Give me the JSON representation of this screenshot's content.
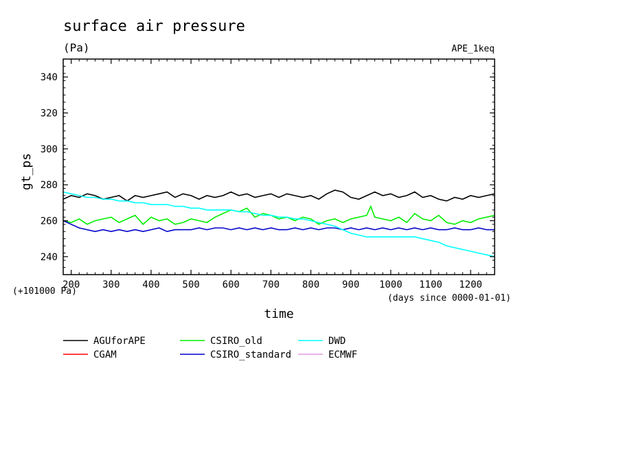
{
  "chart_data": {
    "type": "line",
    "title": "surface air pressure",
    "units": "(Pa)",
    "experiment": "APE_1keq",
    "xlabel": "time",
    "x_units": "(days since 0000-01-01)",
    "ylabel": "gt_ps",
    "y_offset_label": "(+101000 Pa)",
    "xlim": [
      180,
      1260
    ],
    "ylim": [
      230,
      350
    ],
    "x_ticks": [
      200,
      300,
      400,
      500,
      600,
      700,
      800,
      900,
      1000,
      1100,
      1200
    ],
    "y_ticks": [
      240,
      260,
      280,
      300,
      320,
      340
    ],
    "legend_position": "bottom",
    "series": [
      {
        "name": "AGUforAPE",
        "color": "#000000",
        "points": [
          [
            180,
            272
          ],
          [
            200,
            274
          ],
          [
            220,
            273
          ],
          [
            240,
            275
          ],
          [
            260,
            274
          ],
          [
            280,
            272
          ],
          [
            300,
            273
          ],
          [
            320,
            274
          ],
          [
            340,
            271
          ],
          [
            360,
            274
          ],
          [
            380,
            273
          ],
          [
            400,
            274
          ],
          [
            420,
            275
          ],
          [
            440,
            276
          ],
          [
            460,
            273
          ],
          [
            480,
            275
          ],
          [
            500,
            274
          ],
          [
            520,
            272
          ],
          [
            540,
            274
          ],
          [
            560,
            273
          ],
          [
            580,
            274
          ],
          [
            600,
            276
          ],
          [
            620,
            274
          ],
          [
            640,
            275
          ],
          [
            660,
            273
          ],
          [
            680,
            274
          ],
          [
            700,
            275
          ],
          [
            720,
            273
          ],
          [
            740,
            275
          ],
          [
            760,
            274
          ],
          [
            780,
            273
          ],
          [
            800,
            274
          ],
          [
            820,
            272
          ],
          [
            840,
            275
          ],
          [
            860,
            277
          ],
          [
            880,
            276
          ],
          [
            900,
            273
          ],
          [
            920,
            272
          ],
          [
            940,
            274
          ],
          [
            960,
            276
          ],
          [
            980,
            274
          ],
          [
            1000,
            275
          ],
          [
            1020,
            273
          ],
          [
            1040,
            274
          ],
          [
            1060,
            276
          ],
          [
            1080,
            273
          ],
          [
            1100,
            274
          ],
          [
            1120,
            272
          ],
          [
            1140,
            271
          ],
          [
            1160,
            273
          ],
          [
            1180,
            272
          ],
          [
            1200,
            274
          ],
          [
            1220,
            273
          ],
          [
            1240,
            274
          ],
          [
            1260,
            275
          ]
        ]
      },
      {
        "name": "CGAM",
        "color": "#ff0000",
        "points": []
      },
      {
        "name": "CSIRO_old",
        "color": "#00ee00",
        "points": [
          [
            180,
            260
          ],
          [
            200,
            259
          ],
          [
            220,
            261
          ],
          [
            240,
            258
          ],
          [
            260,
            260
          ],
          [
            280,
            261
          ],
          [
            300,
            262
          ],
          [
            320,
            259
          ],
          [
            340,
            261
          ],
          [
            360,
            263
          ],
          [
            380,
            258
          ],
          [
            400,
            262
          ],
          [
            420,
            260
          ],
          [
            440,
            261
          ],
          [
            460,
            258
          ],
          [
            480,
            259
          ],
          [
            500,
            261
          ],
          [
            520,
            260
          ],
          [
            540,
            259
          ],
          [
            560,
            262
          ],
          [
            580,
            264
          ],
          [
            600,
            266
          ],
          [
            620,
            265
          ],
          [
            640,
            267
          ],
          [
            660,
            262
          ],
          [
            680,
            264
          ],
          [
            700,
            263
          ],
          [
            720,
            261
          ],
          [
            740,
            262
          ],
          [
            760,
            260
          ],
          [
            780,
            262
          ],
          [
            800,
            261
          ],
          [
            820,
            258
          ],
          [
            840,
            260
          ],
          [
            860,
            261
          ],
          [
            880,
            259
          ],
          [
            900,
            261
          ],
          [
            920,
            262
          ],
          [
            940,
            263
          ],
          [
            950,
            268
          ],
          [
            960,
            262
          ],
          [
            980,
            261
          ],
          [
            1000,
            260
          ],
          [
            1020,
            262
          ],
          [
            1040,
            259
          ],
          [
            1060,
            264
          ],
          [
            1080,
            261
          ],
          [
            1100,
            260
          ],
          [
            1120,
            263
          ],
          [
            1140,
            259
          ],
          [
            1160,
            258
          ],
          [
            1180,
            260
          ],
          [
            1200,
            259
          ],
          [
            1220,
            261
          ],
          [
            1240,
            262
          ],
          [
            1260,
            263
          ]
        ]
      },
      {
        "name": "CSIRO_standard",
        "color": "#0000cc",
        "points": [
          [
            180,
            260
          ],
          [
            200,
            258
          ],
          [
            220,
            256
          ],
          [
            240,
            255
          ],
          [
            260,
            254
          ],
          [
            280,
            255
          ],
          [
            300,
            254
          ],
          [
            320,
            255
          ],
          [
            340,
            254
          ],
          [
            360,
            255
          ],
          [
            380,
            254
          ],
          [
            400,
            255
          ],
          [
            420,
            256
          ],
          [
            440,
            254
          ],
          [
            460,
            255
          ],
          [
            480,
            255
          ],
          [
            500,
            255
          ],
          [
            520,
            256
          ],
          [
            540,
            255
          ],
          [
            560,
            256
          ],
          [
            580,
            256
          ],
          [
            600,
            255
          ],
          [
            620,
            256
          ],
          [
            640,
            255
          ],
          [
            660,
            256
          ],
          [
            680,
            255
          ],
          [
            700,
            256
          ],
          [
            720,
            255
          ],
          [
            740,
            255
          ],
          [
            760,
            256
          ],
          [
            780,
            255
          ],
          [
            800,
            256
          ],
          [
            820,
            255
          ],
          [
            840,
            256
          ],
          [
            860,
            256
          ],
          [
            880,
            255
          ],
          [
            900,
            256
          ],
          [
            920,
            255
          ],
          [
            940,
            256
          ],
          [
            960,
            255
          ],
          [
            980,
            256
          ],
          [
            1000,
            255
          ],
          [
            1020,
            256
          ],
          [
            1040,
            255
          ],
          [
            1060,
            256
          ],
          [
            1080,
            255
          ],
          [
            1100,
            256
          ],
          [
            1120,
            255
          ],
          [
            1140,
            255
          ],
          [
            1160,
            256
          ],
          [
            1180,
            255
          ],
          [
            1200,
            255
          ],
          [
            1220,
            256
          ],
          [
            1240,
            255
          ],
          [
            1260,
            255
          ]
        ]
      },
      {
        "name": "DWD",
        "color": "#00ffff",
        "points": [
          [
            180,
            276
          ],
          [
            200,
            275
          ],
          [
            220,
            274
          ],
          [
            240,
            273
          ],
          [
            260,
            273
          ],
          [
            280,
            272
          ],
          [
            300,
            272
          ],
          [
            320,
            271
          ],
          [
            340,
            271
          ],
          [
            360,
            270
          ],
          [
            380,
            270
          ],
          [
            400,
            269
          ],
          [
            420,
            269
          ],
          [
            440,
            269
          ],
          [
            460,
            268
          ],
          [
            480,
            268
          ],
          [
            500,
            267
          ],
          [
            520,
            267
          ],
          [
            540,
            266
          ],
          [
            560,
            266
          ],
          [
            580,
            266
          ],
          [
            600,
            266
          ],
          [
            620,
            265
          ],
          [
            640,
            265
          ],
          [
            660,
            264
          ],
          [
            680,
            263
          ],
          [
            700,
            263
          ],
          [
            720,
            262
          ],
          [
            740,
            262
          ],
          [
            760,
            261
          ],
          [
            780,
            261
          ],
          [
            800,
            260
          ],
          [
            820,
            259
          ],
          [
            840,
            258
          ],
          [
            860,
            257
          ],
          [
            880,
            255
          ],
          [
            900,
            253
          ],
          [
            920,
            252
          ],
          [
            940,
            251
          ],
          [
            960,
            251
          ],
          [
            980,
            251
          ],
          [
            1000,
            251
          ],
          [
            1020,
            251
          ],
          [
            1040,
            251
          ],
          [
            1060,
            251
          ],
          [
            1080,
            250
          ],
          [
            1100,
            249
          ],
          [
            1120,
            248
          ],
          [
            1140,
            246
          ],
          [
            1160,
            245
          ],
          [
            1180,
            244
          ],
          [
            1200,
            243
          ],
          [
            1220,
            242
          ],
          [
            1240,
            241
          ],
          [
            1260,
            240
          ]
        ]
      },
      {
        "name": "ECMWF",
        "color": "#dd99dd",
        "points": []
      }
    ]
  }
}
